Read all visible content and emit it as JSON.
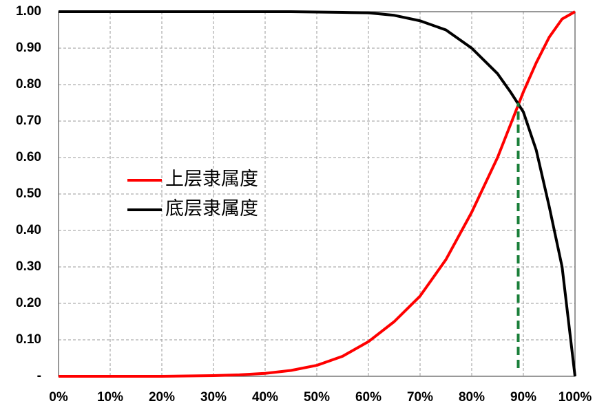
{
  "chart_data": {
    "type": "line",
    "x": [
      0,
      5,
      10,
      15,
      20,
      25,
      30,
      35,
      40,
      45,
      50,
      55,
      60,
      65,
      70,
      75,
      80,
      85,
      87.5,
      90,
      92.5,
      95,
      97.5,
      100
    ],
    "series": [
      {
        "name": "上层隶属度",
        "color": "#ff0000",
        "values": [
          0,
          0,
          0,
          0,
          0,
          0.001,
          0.002,
          0.004,
          0.008,
          0.016,
          0.03,
          0.055,
          0.095,
          0.15,
          0.22,
          0.32,
          0.45,
          0.6,
          0.69,
          0.78,
          0.86,
          0.93,
          0.98,
          1.0
        ]
      },
      {
        "name": "底层隶属度",
        "color": "#000000",
        "values": [
          1,
          1,
          1,
          1,
          1,
          1,
          1,
          1,
          1,
          1,
          0.999,
          0.998,
          0.997,
          0.99,
          0.975,
          0.95,
          0.9,
          0.83,
          0.78,
          0.725,
          0.62,
          0.466,
          0.3,
          0
        ]
      }
    ],
    "xlim": [
      0,
      100
    ],
    "xticks": [
      {
        "value": 0,
        "label": "0%"
      },
      {
        "value": 10,
        "label": "10%"
      },
      {
        "value": 20,
        "label": "20%"
      },
      {
        "value": 30,
        "label": "30%"
      },
      {
        "value": 40,
        "label": "40%"
      },
      {
        "value": 50,
        "label": "50%"
      },
      {
        "value": 60,
        "label": "60%"
      },
      {
        "value": 70,
        "label": "70%"
      },
      {
        "value": 80,
        "label": "80%"
      },
      {
        "value": 90,
        "label": "90%"
      },
      {
        "value": 100,
        "label": "100%"
      }
    ],
    "ylim": [
      0,
      1
    ],
    "yticks": [
      {
        "value": 0,
        "label": "-"
      },
      {
        "value": 0.1,
        "label": "0.10"
      },
      {
        "value": 0.2,
        "label": "0.20"
      },
      {
        "value": 0.3,
        "label": "0.30"
      },
      {
        "value": 0.4,
        "label": "0.40"
      },
      {
        "value": 0.5,
        "label": "0.50"
      },
      {
        "value": 0.6,
        "label": "0.60"
      },
      {
        "value": 0.7,
        "label": "0.70"
      },
      {
        "value": 0.8,
        "label": "0.80"
      },
      {
        "value": 0.9,
        "label": "0.90"
      },
      {
        "value": 1,
        "label": "1.00"
      }
    ],
    "grid": true,
    "legend": "center-left",
    "reference_line": {
      "x": 89,
      "y": 0.75,
      "color": "#1a7f3a"
    }
  }
}
